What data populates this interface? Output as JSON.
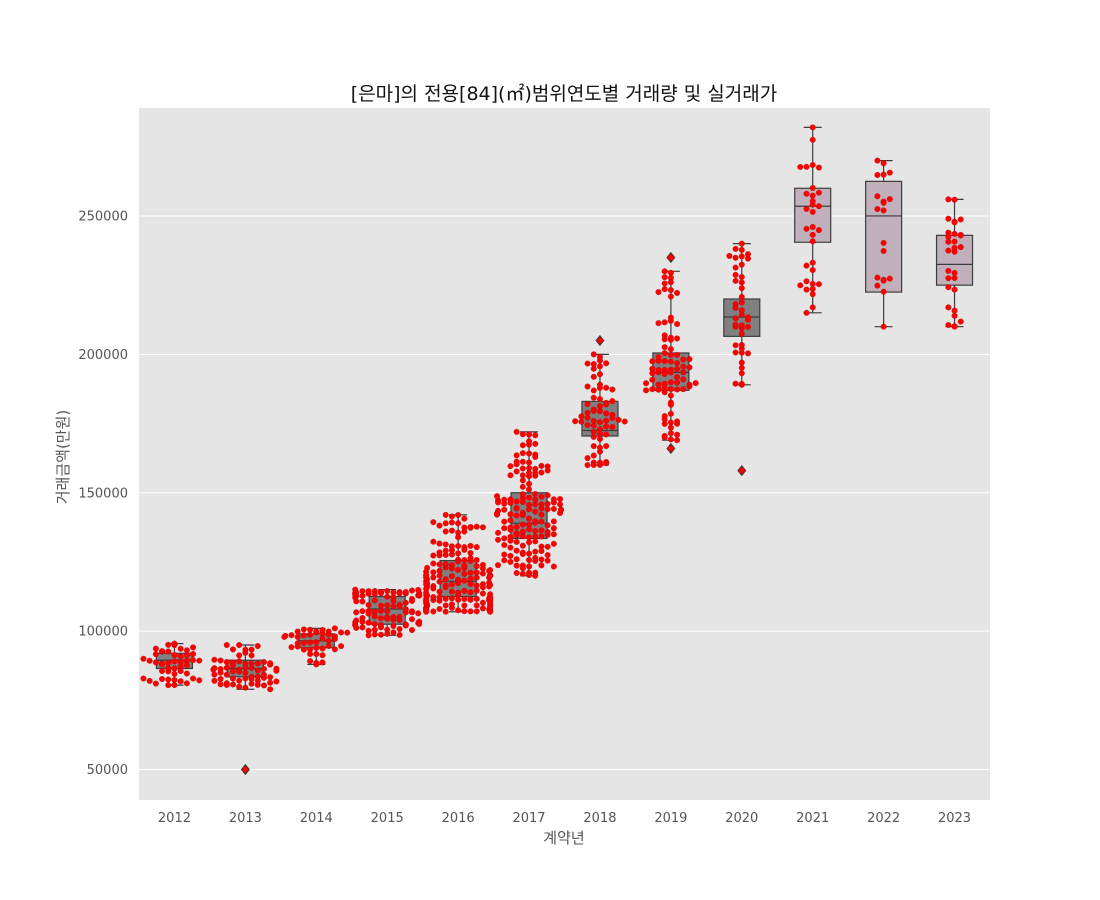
{
  "chart_data": {
    "type": "box",
    "title": "[은마]의 전용[84](㎡)범위연도별 거래량 및 실거래가",
    "xlabel": "계약년",
    "ylabel": "거래금액(만원)",
    "ylim": [
      39000,
      289000
    ],
    "yticks": [
      50000,
      100000,
      150000,
      200000,
      250000
    ],
    "grid": true,
    "colors": {
      "background": "#e5e5e5",
      "grid": "#ffffff",
      "point": "#ff0000",
      "box_dark": "#808080",
      "box_light": "#c0b0bc"
    },
    "categories": [
      "2012",
      "2013",
      "2014",
      "2015",
      "2016",
      "2017",
      "2018",
      "2019",
      "2020",
      "2021",
      "2022",
      "2023"
    ],
    "boxes": [
      {
        "year": "2012",
        "whislo": 80500,
        "q1": 86500,
        "med": 89500,
        "q3": 92000,
        "whishi": 95500,
        "outliers": [],
        "count": 45
      },
      {
        "year": "2013",
        "whislo": 79000,
        "q1": 83500,
        "med": 86500,
        "q3": 89500,
        "whishi": 95000,
        "outliers": [
          50000
        ],
        "count": 60
      },
      {
        "year": "2014",
        "whislo": 88000,
        "q1": 94000,
        "med": 96500,
        "q3": 99000,
        "whishi": 101000,
        "outliers": [],
        "count": 40
      },
      {
        "year": "2015",
        "whislo": 98500,
        "q1": 102500,
        "med": 108000,
        "q3": 112500,
        "whishi": 115000,
        "outliers": [],
        "count": 90
      },
      {
        "year": "2016",
        "whislo": 107000,
        "q1": 112500,
        "med": 118000,
        "q3": 125500,
        "whishi": 142000,
        "outliers": [],
        "count": 160
      },
      {
        "year": "2017",
        "whislo": 120000,
        "q1": 133500,
        "med": 139000,
        "q3": 150000,
        "whishi": 172000,
        "outliers": [],
        "count": 150
      },
      {
        "year": "2018",
        "whislo": 160000,
        "q1": 170500,
        "med": 172500,
        "q3": 183000,
        "whishi": 200000,
        "outliers": [
          205000
        ],
        "count": 60
      },
      {
        "year": "2019",
        "whislo": 169000,
        "q1": 187000,
        "med": 193500,
        "q3": 200500,
        "whishi": 230000,
        "outliers": [
          235000,
          166000
        ],
        "count": 80
      },
      {
        "year": "2020",
        "whislo": 189000,
        "q1": 206500,
        "med": 213500,
        "q3": 220000,
        "whishi": 240000,
        "outliers": [
          158000
        ],
        "count": 40
      },
      {
        "year": "2021",
        "whislo": 215000,
        "q1": 240500,
        "med": 253500,
        "q3": 260000,
        "whishi": 282000,
        "outliers": [],
        "count": 30
      },
      {
        "year": "2022",
        "whislo": 210000,
        "q1": 222500,
        "med": 250000,
        "q3": 262500,
        "whishi": 270000,
        "outliers": [],
        "count": 18
      },
      {
        "year": "2023",
        "whislo": 210000,
        "q1": 225000,
        "med": 232500,
        "q3": 243000,
        "whishi": 256000,
        "outliers": [],
        "count": 28
      }
    ]
  }
}
